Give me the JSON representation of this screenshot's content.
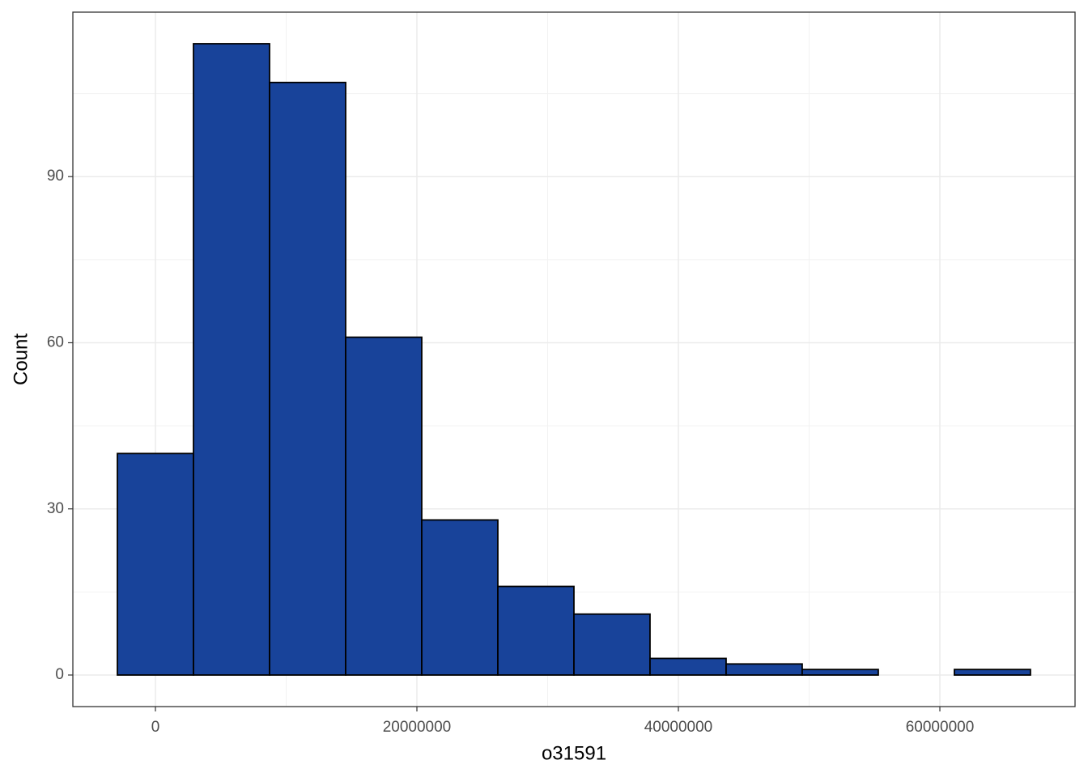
{
  "chart_data": {
    "type": "histogram",
    "x_label": "o31591",
    "y_label": "Count",
    "bins": [
      -2910000,
      2910000,
      8730000,
      14550000,
      20370000,
      26190000,
      32010000,
      37830000,
      43650000,
      49470000,
      55290000,
      61110000,
      66930000
    ],
    "values": [
      40,
      114,
      107,
      61,
      28,
      16,
      11,
      3,
      2,
      1,
      0,
      1
    ],
    "color": "#18439a",
    "edge_color": "#000000",
    "xlim": [
      -6316000,
      70340000
    ],
    "xticks": [
      0,
      20000000,
      40000000,
      60000000
    ],
    "xminor": [
      10000000,
      30000000,
      50000000
    ],
    "ylim": [
      -5.7,
      119.7
    ],
    "yticks": [
      0,
      30,
      60,
      90
    ],
    "yminor": [
      15,
      45,
      75,
      105
    ],
    "grid": true
  }
}
